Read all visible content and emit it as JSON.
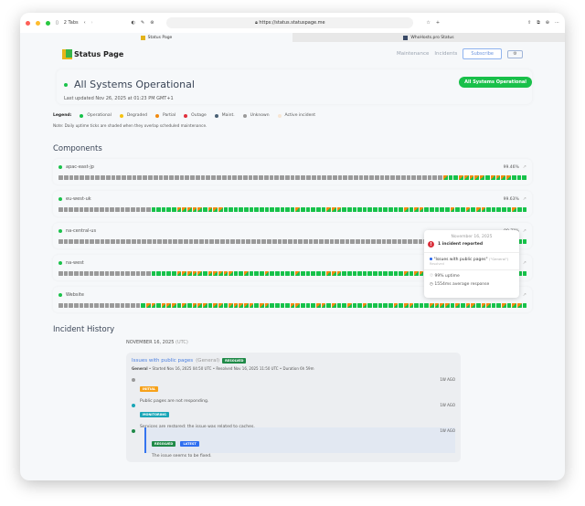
{
  "browser": {
    "tabs_count": "2 Tabs",
    "url": "https://status.statuspage.me",
    "tabs": [
      {
        "label": "Status Page"
      },
      {
        "label": "WhoHosts.pro Status"
      }
    ]
  },
  "header": {
    "logo": "Status Page",
    "nav": [
      "Maintenance",
      "Incidents"
    ],
    "subscribe": "Subscribe",
    "settings_icon": "gear-icon"
  },
  "status": {
    "title": "All Systems Operational",
    "updated": "Last updated Nov 26, 2025 at 01:23 PM GMT+1",
    "pill": "All Systems Operational"
  },
  "legend": {
    "label": "Legend:",
    "items": [
      {
        "label": "Operational",
        "color": "#17c24a"
      },
      {
        "label": "Degraded",
        "color": "#f5c211"
      },
      {
        "label": "Partial",
        "color": "#f28a10"
      },
      {
        "label": "Outage",
        "color": "#e0303c"
      },
      {
        "label": "Maint.",
        "color": "#4a6074"
      },
      {
        "label": "Unknown",
        "color": "#9a9a9a"
      },
      {
        "label": "Active incident",
        "color": "#f7e6d4"
      }
    ],
    "note": "Note: Daily uptime ticks are shaded when they overlap scheduled maintenance."
  },
  "components_title": "Components",
  "components": [
    {
      "name": "apac-east-jp",
      "uptime": "99.46%",
      "ticks": "gggggggggggggggggggggggggggggggggggggggggggggggggggggggggggggggggggggggggpoopppppoppppooo"
    },
    {
      "name": "eu-west-uk",
      "uptime": "99.63%",
      "ticks": "ggggggggggggggggggooooopppppopppoooooooooooooopooooopppoooooooooooopoppooooopoopoppooooopoo"
    },
    {
      "name": "na-central-us",
      "uptime": "99.7?%",
      "ticks": "ggggggggggggggggggggggggggggggggggggggggggggggggggggggggggggggggggggggggggggggggggggggggoo"
    },
    {
      "name": "na-west",
      "uptime": "",
      "ticks": "ggggggggggggggggggooooopppppopppppoopooopooooopooooopppoooooooooooopoppooooopoopoppooooopoo"
    },
    {
      "name": "Website",
      "uptime": "",
      "ticks": "ggggggggggggggggoppopppopopppoppopppppoppooooppoooppopoopoopooooopoppoooppppopoppoppoopoppo"
    }
  ],
  "tooltip": {
    "date": "November 16, 2025",
    "count": "1 incident reported",
    "incident": "\"Issues with public pages\"",
    "group": "(\"General\")",
    "state": "Resolved",
    "uptime": "99% uptime",
    "response": "1554ms average response"
  },
  "history": {
    "title": "Incident History",
    "date": "NOVEMBER 16, 2025",
    "tz": "(UTC)",
    "incident": {
      "title": "Issues with public pages",
      "group": "(General)",
      "badge": "RESOLVED",
      "meta_group": "General",
      "meta": " • Started Nov 16, 2025 04:50 UTC • Resolved Nov 16, 2025 11:50 UTC • Duration 6h 59m",
      "updates": [
        {
          "badge": "INITIAL",
          "color": "#f7a21b",
          "dot": "#999999",
          "ago": "1W AGO",
          "text": "Public pages are not responding."
        },
        {
          "badge": "MONITORING",
          "color": "#1aa6b7",
          "dot": "#1aa6b7",
          "ago": "1W AGO",
          "text": "Services are restored; the issue was related to caches."
        },
        {
          "badge": "RESOLVED",
          "latest": "LATEST",
          "color": "#1f8a48",
          "dot": "#1f8a48",
          "ago": "1W AGO",
          "text": "The issue seems to be fixed."
        }
      ]
    }
  }
}
